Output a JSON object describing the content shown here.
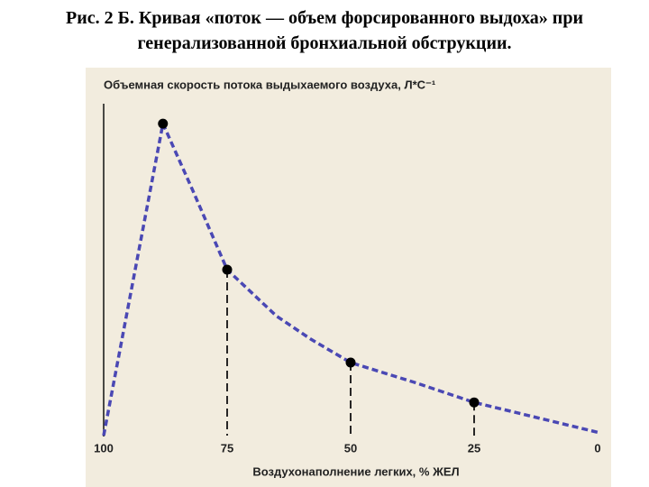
{
  "chart_data": {
    "type": "line",
    "title": "Рис. 2 Б. Кривая «поток — объем форсированного выдоха» при генерализованной бронхиальной обструкции.",
    "ylabel": "Объемная скорость потока выдыхаемого воздуха, Л*С⁻¹",
    "xlabel": "Воздухонаполнение легких, % ЖЕЛ",
    "xlim": [
      100,
      0
    ],
    "xticks": [
      100,
      75,
      50,
      25,
      0
    ],
    "ylim": [
      0,
      10
    ],
    "series": [
      {
        "color": "#4a48b4",
        "x": [
          100,
          88,
          82,
          75,
          65,
          58,
          50,
          37,
          25,
          0
        ],
        "values": [
          0,
          9.4,
          7.4,
          5.0,
          3.6,
          2.9,
          2.2,
          1.6,
          1.0,
          0.1
        ]
      }
    ],
    "markers": {
      "color": "#000000",
      "x": [
        88,
        75,
        50,
        25
      ],
      "values": [
        9.4,
        5.0,
        2.2,
        1.0
      ]
    },
    "background": "#f2ecde"
  }
}
